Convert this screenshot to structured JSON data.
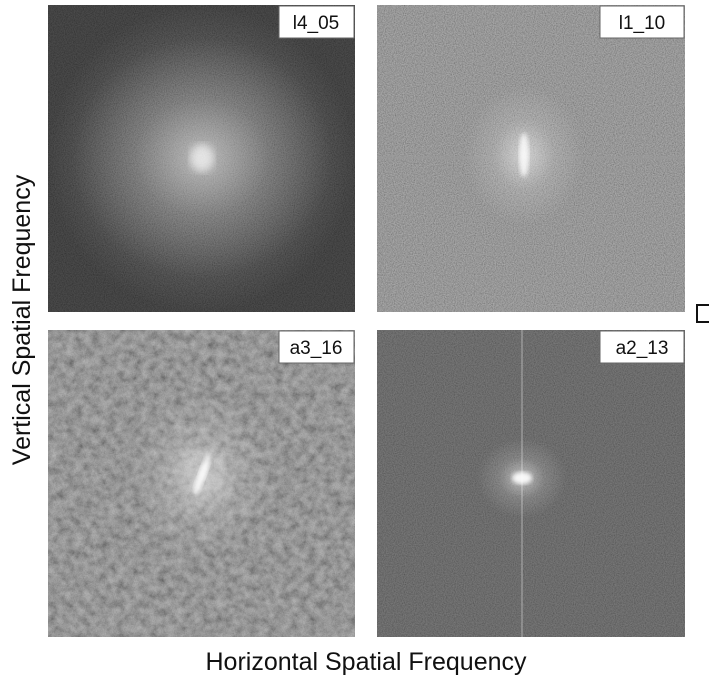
{
  "panels": [
    {
      "label": "l4_05"
    },
    {
      "label": "l1_10"
    },
    {
      "label": "a3_16"
    },
    {
      "label": "a2_13"
    }
  ],
  "y_axis_label": "Vertical Spatial Frequency",
  "x_axis_label": "Horizontal Spatial Frequency"
}
